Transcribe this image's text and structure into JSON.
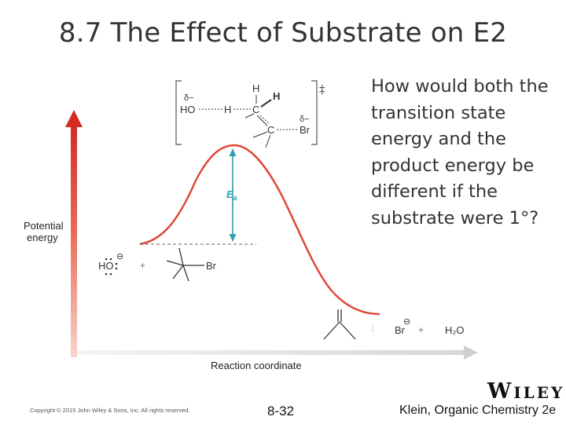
{
  "slide": {
    "title": "8.7 The Effect of Substrate on E2",
    "question": "How would both the transition state energy and the product energy be different if the substrate were 1°?"
  },
  "diagram": {
    "y_axis_label_line1": "Potential",
    "y_axis_label_line2": "energy",
    "x_axis_label": "Reaction coordinate",
    "activation_energy_symbol": "E",
    "activation_energy_subscript": "a",
    "transition_state_marker": "‡",
    "ts_partial_charge_left": "δ−",
    "ts_partial_charge_right": "δ−",
    "ts_hydroxide": "HO",
    "ts_hydrogen_breaking": "H",
    "ts_carbon_top": "C",
    "ts_carbon_bottom": "C",
    "ts_hydrogen_top": "H",
    "ts_hydrogen_bold": "H",
    "ts_bromine": "Br",
    "reactant_hydroxide": "HO",
    "reactant_charge": "⊖",
    "reactant_plus": "+",
    "reactant_bromine": "Br",
    "product_bromide": "Br",
    "product_charge": "⊖",
    "product_plus_1": "+",
    "product_plus_2": "+",
    "product_water": "H₂O",
    "colors": {
      "curve": "#e0483a",
      "arrow": "#d63027",
      "ea_arrow": "#2f9fb0",
      "ea_label": "#2f9fb0"
    }
  },
  "footer": {
    "copyright": "Copyright © 2015 John Wiley & Sons, Inc. All rights reserved.",
    "page_number": "8-32",
    "textbook": "Klein, Organic Chemistry 2e",
    "publisher_first": "W",
    "publisher_rest": "ILEY"
  }
}
